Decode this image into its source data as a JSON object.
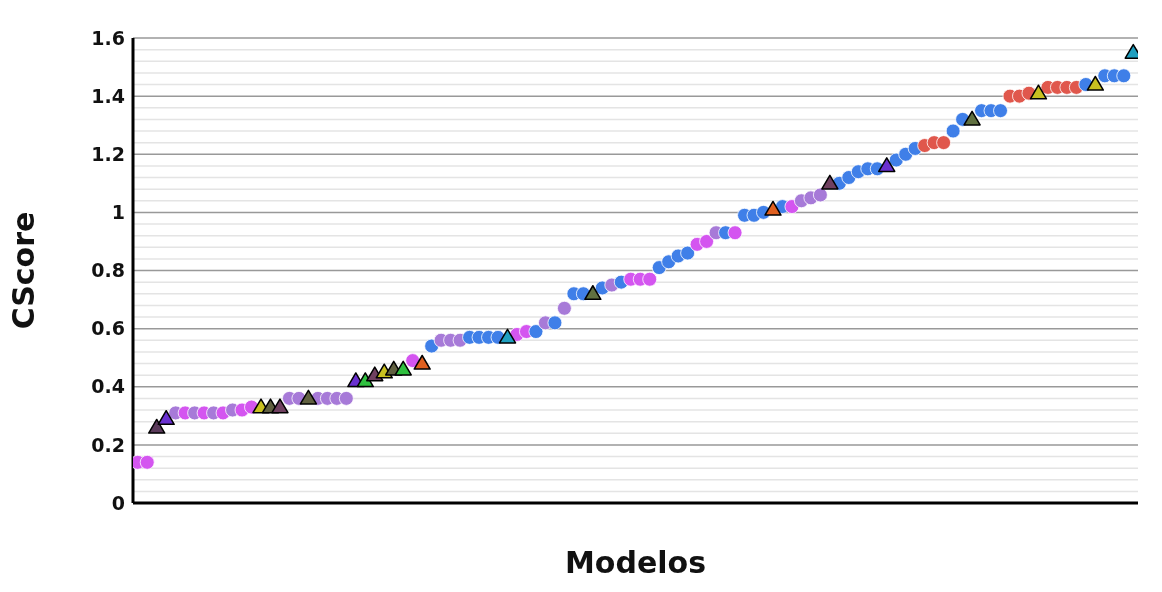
{
  "chart_data": {
    "type": "scatter",
    "xlabel": "Modelos",
    "ylabel": "CScore",
    "categories": [
      null,
      null,
      null,
      null,
      null,
      null,
      null,
      null,
      null,
      null,
      null,
      null,
      null,
      null,
      null,
      null,
      null,
      null,
      null,
      null,
      null,
      null,
      null,
      null,
      null,
      null,
      null,
      null,
      null,
      null,
      null,
      null,
      null,
      null,
      null,
      null,
      null,
      null,
      null,
      null,
      null,
      null,
      null,
      null,
      null,
      null,
      null,
      null,
      null,
      null,
      null,
      null,
      null,
      null,
      null,
      null,
      null,
      null,
      null,
      null,
      null,
      null,
      null,
      null,
      null,
      null,
      null,
      null,
      null,
      null,
      null,
      null,
      null,
      null,
      null,
      null,
      null,
      null,
      null,
      null,
      null,
      null,
      null,
      null,
      null,
      null,
      null,
      null,
      null,
      null,
      null,
      null,
      null,
      null,
      null,
      null,
      null,
      null,
      null,
      null,
      null,
      null,
      null,
      null,
      null,
      null
    ],
    "ylim": [
      0,
      1.6
    ],
    "yticks": [
      0,
      {
        "value": 0.04,
        "label": null
      },
      {
        "value": 0.08,
        "label": null
      },
      {
        "value": 0.12,
        "label": null
      },
      {
        "value": 0.16,
        "label": null
      },
      0.2,
      {
        "value": 0.24,
        "label": null
      },
      {
        "value": 0.28,
        "label": null
      },
      {
        "value": 0.32,
        "label": null
      },
      {
        "value": 0.36,
        "label": null
      },
      0.4,
      {
        "value": 0.44,
        "label": null
      },
      {
        "value": 0.48,
        "label": null
      },
      {
        "value": 0.52,
        "label": null
      },
      {
        "value": 0.56,
        "label": null
      },
      0.6,
      {
        "value": 0.64,
        "label": null
      },
      {
        "value": 0.68,
        "label": null
      },
      {
        "value": 0.72,
        "label": null
      },
      {
        "value": 0.76,
        "label": null
      },
      0.8,
      {
        "value": 0.84,
        "label": null
      },
      {
        "value": 0.88,
        "label": null
      },
      {
        "value": 0.92,
        "label": null
      },
      {
        "value": 0.96,
        "label": null
      },
      1,
      {
        "value": 1.04,
        "label": null
      },
      {
        "value": 1.08,
        "label": null
      },
      {
        "value": 1.12,
        "label": null
      },
      {
        "value": 1.16,
        "label": null
      },
      1.2,
      {
        "value": 1.24,
        "label": null
      },
      {
        "value": 1.28,
        "label": null
      },
      {
        "value": 1.32,
        "label": null
      },
      {
        "value": 1.36,
        "label": null
      },
      1.4,
      {
        "value": 1.44,
        "label": null
      },
      {
        "value": 1.48,
        "label": null
      },
      {
        "value": 1.52,
        "label": null
      },
      {
        "value": 1.56,
        "label": null
      },
      1.6
    ],
    "grid": "y",
    "legend": false,
    "series": [
      {
        "marker": "circle",
        "values": [
          0.14,
          0.14,
          null,
          null,
          0.31,
          0.31,
          0.31,
          0.31,
          0.31,
          0.31,
          0.32,
          0.32,
          0.33,
          null,
          null,
          null,
          0.36,
          0.36,
          null,
          0.36,
          0.36,
          0.36,
          0.36,
          null,
          null,
          null,
          null,
          null,
          null,
          0.49,
          null,
          0.54,
          0.56,
          0.56,
          0.56,
          0.57,
          0.57,
          0.57,
          0.57,
          null,
          0.58,
          0.59,
          0.59,
          0.62,
          0.62,
          0.67,
          0.72,
          0.72,
          null,
          0.74,
          0.75,
          0.76,
          0.77,
          0.77,
          0.77,
          0.81,
          0.83,
          0.85,
          0.86,
          0.89,
          0.9,
          0.93,
          0.93,
          0.93,
          0.99,
          0.99,
          1.0,
          null,
          1.02,
          1.02,
          1.04,
          1.05,
          1.06,
          null,
          1.1,
          1.12,
          1.14,
          1.15,
          1.15,
          null,
          1.18,
          1.2,
          1.22,
          1.23,
          1.24,
          1.24,
          1.28,
          1.32,
          null,
          1.35,
          1.35,
          1.35,
          1.4,
          1.4,
          1.41,
          null,
          1.43,
          1.43,
          1.43,
          1.43,
          1.44,
          null,
          1.47,
          1.47,
          1.47,
          null
        ],
        "colors": [
          "#d455f0",
          "#d455f0",
          null,
          null,
          "#a77ad8",
          "#d455f0",
          "#a77ad8",
          "#d455f0",
          "#a77ad8",
          "#d455f0",
          "#a77ad8",
          "#d455f0",
          "#d455f0",
          null,
          null,
          null,
          "#a77ad8",
          "#a77ad8",
          null,
          "#a77ad8",
          "#a77ad8",
          "#a77ad8",
          "#a77ad8",
          null,
          null,
          null,
          null,
          null,
          null,
          "#d455f0",
          null,
          "#3f7fe8",
          "#a77ad8",
          "#a77ad8",
          "#a77ad8",
          "#3f7fe8",
          "#3f7fe8",
          "#3f7fe8",
          "#3f7fe8",
          null,
          "#d455f0",
          "#d455f0",
          "#3f7fe8",
          "#a77ad8",
          "#3f7fe8",
          "#a77ad8",
          "#3f7fe8",
          "#3f7fe8",
          null,
          "#3f7fe8",
          "#a77ad8",
          "#3f7fe8",
          "#d455f0",
          "#d455f0",
          "#d455f0",
          "#3f7fe8",
          "#3f7fe8",
          "#3f7fe8",
          "#3f7fe8",
          "#d455f0",
          "#d455f0",
          "#a77ad8",
          "#3f7fe8",
          "#d455f0",
          "#3f7fe8",
          "#3f7fe8",
          "#3f7fe8",
          null,
          "#3f7fe8",
          "#d455f0",
          "#a77ad8",
          "#a77ad8",
          "#a77ad8",
          null,
          "#3f7fe8",
          "#3f7fe8",
          "#3f7fe8",
          "#3f7fe8",
          "#3f7fe8",
          null,
          "#3f7fe8",
          "#3f7fe8",
          "#3f7fe8",
          "#e0574c",
          "#e0574c",
          "#e0574c",
          "#3f7fe8",
          "#3f7fe8",
          null,
          "#3f7fe8",
          "#3f7fe8",
          "#3f7fe8",
          "#e0574c",
          "#e0574c",
          "#e0574c",
          null,
          "#e0574c",
          "#e0574c",
          "#e0574c",
          "#e0574c",
          "#3f7fe8",
          null,
          "#3f7fe8",
          "#3f7fe8",
          "#3f7fe8",
          null
        ]
      },
      {
        "marker": "triangle",
        "values": [
          null,
          null,
          0.26,
          0.29,
          null,
          null,
          null,
          null,
          null,
          null,
          null,
          null,
          null,
          0.33,
          0.33,
          0.33,
          null,
          null,
          0.36,
          null,
          null,
          null,
          null,
          0.42,
          0.42,
          0.44,
          0.45,
          0.46,
          0.46,
          null,
          0.48,
          null,
          null,
          null,
          null,
          null,
          null,
          null,
          null,
          0.57,
          null,
          null,
          null,
          null,
          null,
          null,
          null,
          null,
          0.72,
          null,
          null,
          null,
          null,
          null,
          null,
          null,
          null,
          null,
          null,
          null,
          null,
          null,
          null,
          null,
          null,
          null,
          null,
          1.01,
          null,
          null,
          null,
          null,
          null,
          1.1,
          null,
          null,
          null,
          null,
          null,
          1.16,
          null,
          null,
          null,
          null,
          null,
          null,
          null,
          null,
          1.32,
          null,
          null,
          null,
          null,
          null,
          null,
          1.41,
          null,
          null,
          null,
          null,
          null,
          1.44,
          null,
          null,
          null,
          1.55
        ],
        "colors": [
          null,
          null,
          "#5a3a5a",
          "#6a30d0",
          null,
          null,
          null,
          null,
          null,
          null,
          null,
          null,
          null,
          "#c8c020",
          "#606040",
          "#704060",
          null,
          null,
          "#606040",
          null,
          null,
          null,
          null,
          "#6a30d0",
          "#30c040",
          "#704060",
          "#c8c020",
          "#606040",
          "#30c040",
          null,
          "#e06020",
          null,
          null,
          null,
          null,
          null,
          null,
          null,
          null,
          "#20a0c0",
          null,
          null,
          null,
          null,
          null,
          null,
          null,
          null,
          "#607040",
          null,
          null,
          null,
          null,
          null,
          null,
          null,
          null,
          null,
          null,
          null,
          null,
          null,
          null,
          null,
          null,
          null,
          null,
          "#e06020",
          null,
          null,
          null,
          null,
          null,
          "#704060",
          null,
          null,
          null,
          null,
          null,
          "#6a30d0",
          null,
          null,
          null,
          null,
          null,
          null,
          null,
          null,
          "#607040",
          null,
          null,
          null,
          null,
          null,
          null,
          "#c8c020",
          null,
          null,
          null,
          null,
          null,
          "#c8c020",
          null,
          null,
          null,
          "#20a0c0"
        ]
      }
    ]
  }
}
